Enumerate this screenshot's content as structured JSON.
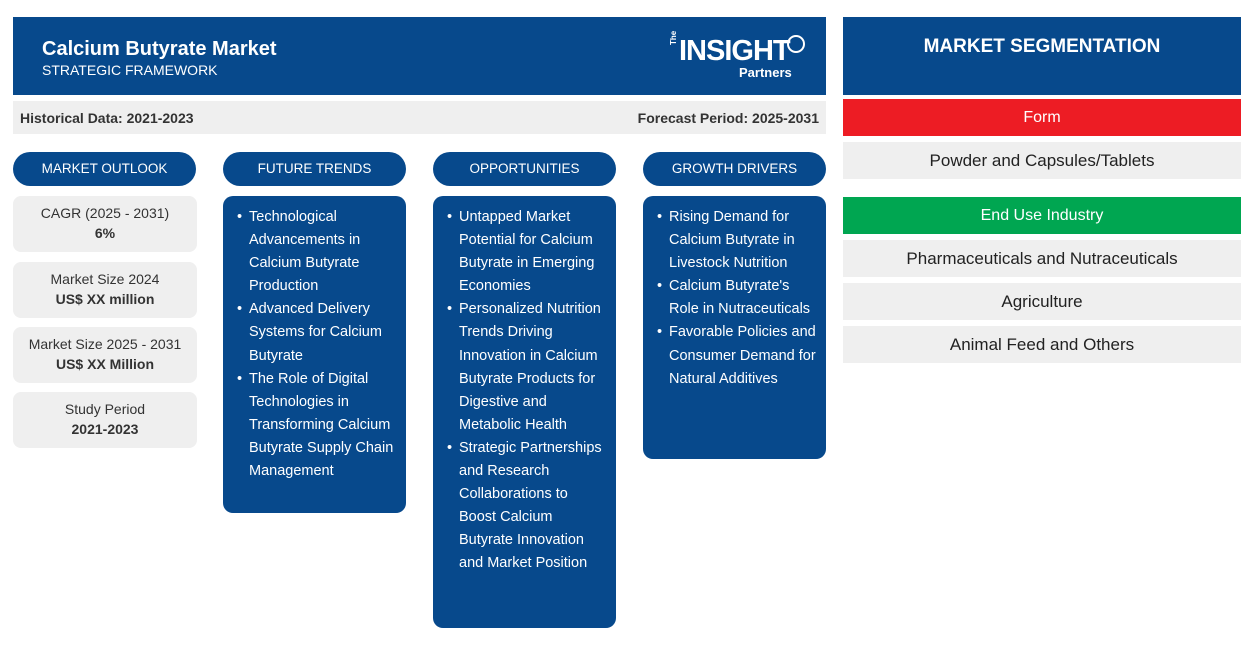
{
  "header": {
    "title": "Calcium Butyrate Market",
    "subtitle": "STRATEGIC FRAMEWORK",
    "logo": {
      "the": "The",
      "insight": "INSIGHT",
      "partners": "Partners"
    }
  },
  "periods": {
    "historical": "Historical Data: 2021-2023",
    "forecast": "Forecast Period: 2025-2031"
  },
  "columns": {
    "outlook": "MARKET OUTLOOK",
    "trends": "FUTURE TRENDS",
    "opportunities": "OPPORTUNITIES",
    "drivers": "GROWTH DRIVERS"
  },
  "outlook": [
    {
      "label": "CAGR (2025 - 2031)",
      "value": "6%"
    },
    {
      "label": "Market Size 2024",
      "value": "US$ XX million"
    },
    {
      "label": "Market Size 2025 - 2031",
      "value": "US$ XX Million"
    },
    {
      "label": "Study Period",
      "value": "2021-2023"
    }
  ],
  "trends": [
    "Technological Advancements in Calcium Butyrate Production",
    "Advanced Delivery Systems for Calcium Butyrate",
    "The Role of Digital Technologies in Transforming Calcium Butyrate Supply Chain Management"
  ],
  "opportunities": [
    "Untapped Market Potential for Calcium Butyrate in Emerging Economies",
    "Personalized Nutrition Trends Driving Innovation in Calcium Butyrate Products for Digestive and Metabolic Health",
    "Strategic Partnerships and Research Collaborations to Boost Calcium Butyrate Innovation and Market Position"
  ],
  "drivers": [
    "Rising Demand for Calcium Butyrate in Livestock Nutrition",
    "Calcium Butyrate's Role in Nutraceuticals",
    "Favorable Policies and Consumer Demand for Natural Additives"
  ],
  "segmentation": {
    "title": "MARKET SEGMENTATION",
    "form": {
      "label": "Form",
      "color": "#ed1c24",
      "items": [
        "Powder and Capsules/Tablets"
      ]
    },
    "end_use": {
      "label": "End Use Industry",
      "color": "#00a651",
      "items": [
        "Pharmaceuticals and Nutraceuticals",
        "Agriculture",
        "Animal Feed and Others"
      ]
    }
  },
  "colors": {
    "primary": "#07498c",
    "panel": "#efefef"
  }
}
